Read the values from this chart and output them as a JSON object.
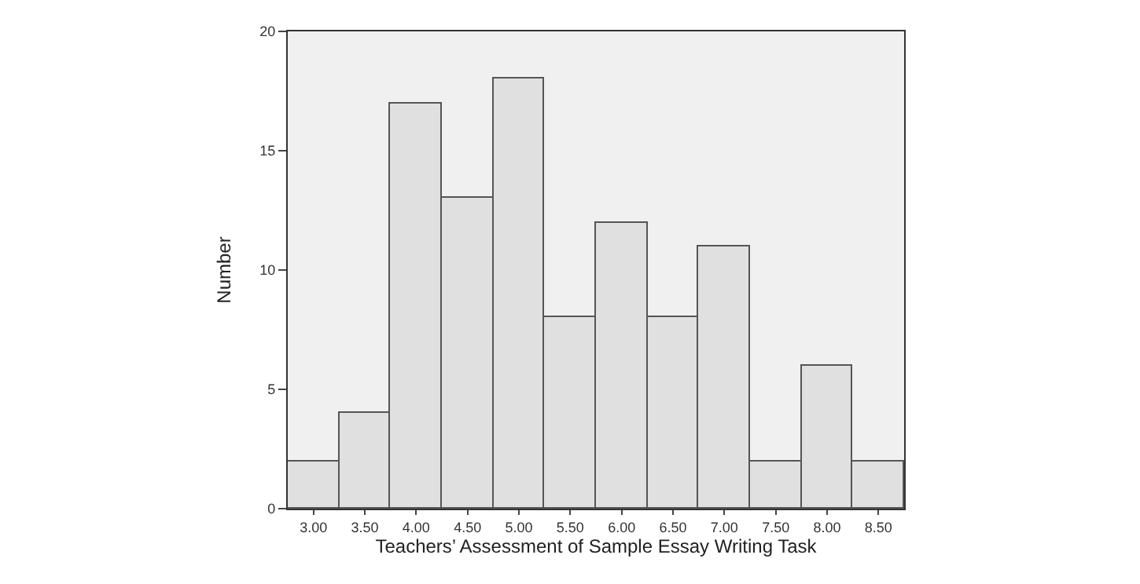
{
  "chart_data": {
    "type": "bar",
    "xlabel": "Teachers’ Assessment of Sample Essay Writing Task",
    "ylabel": "Number",
    "categories": [
      "3.00",
      "3.50",
      "4.00",
      "4.50",
      "5.00",
      "5.50",
      "6.00",
      "6.50",
      "7.00",
      "7.50",
      "8.00",
      "8.50"
    ],
    "values": [
      2,
      4,
      17,
      13,
      18,
      8,
      12,
      8,
      11,
      2,
      6,
      2
    ],
    "color": "#e0e0e0",
    "ylim": [
      0,
      20
    ],
    "yticks": [
      0,
      5,
      10,
      15,
      20
    ],
    "grid": false,
    "legend": false
  }
}
